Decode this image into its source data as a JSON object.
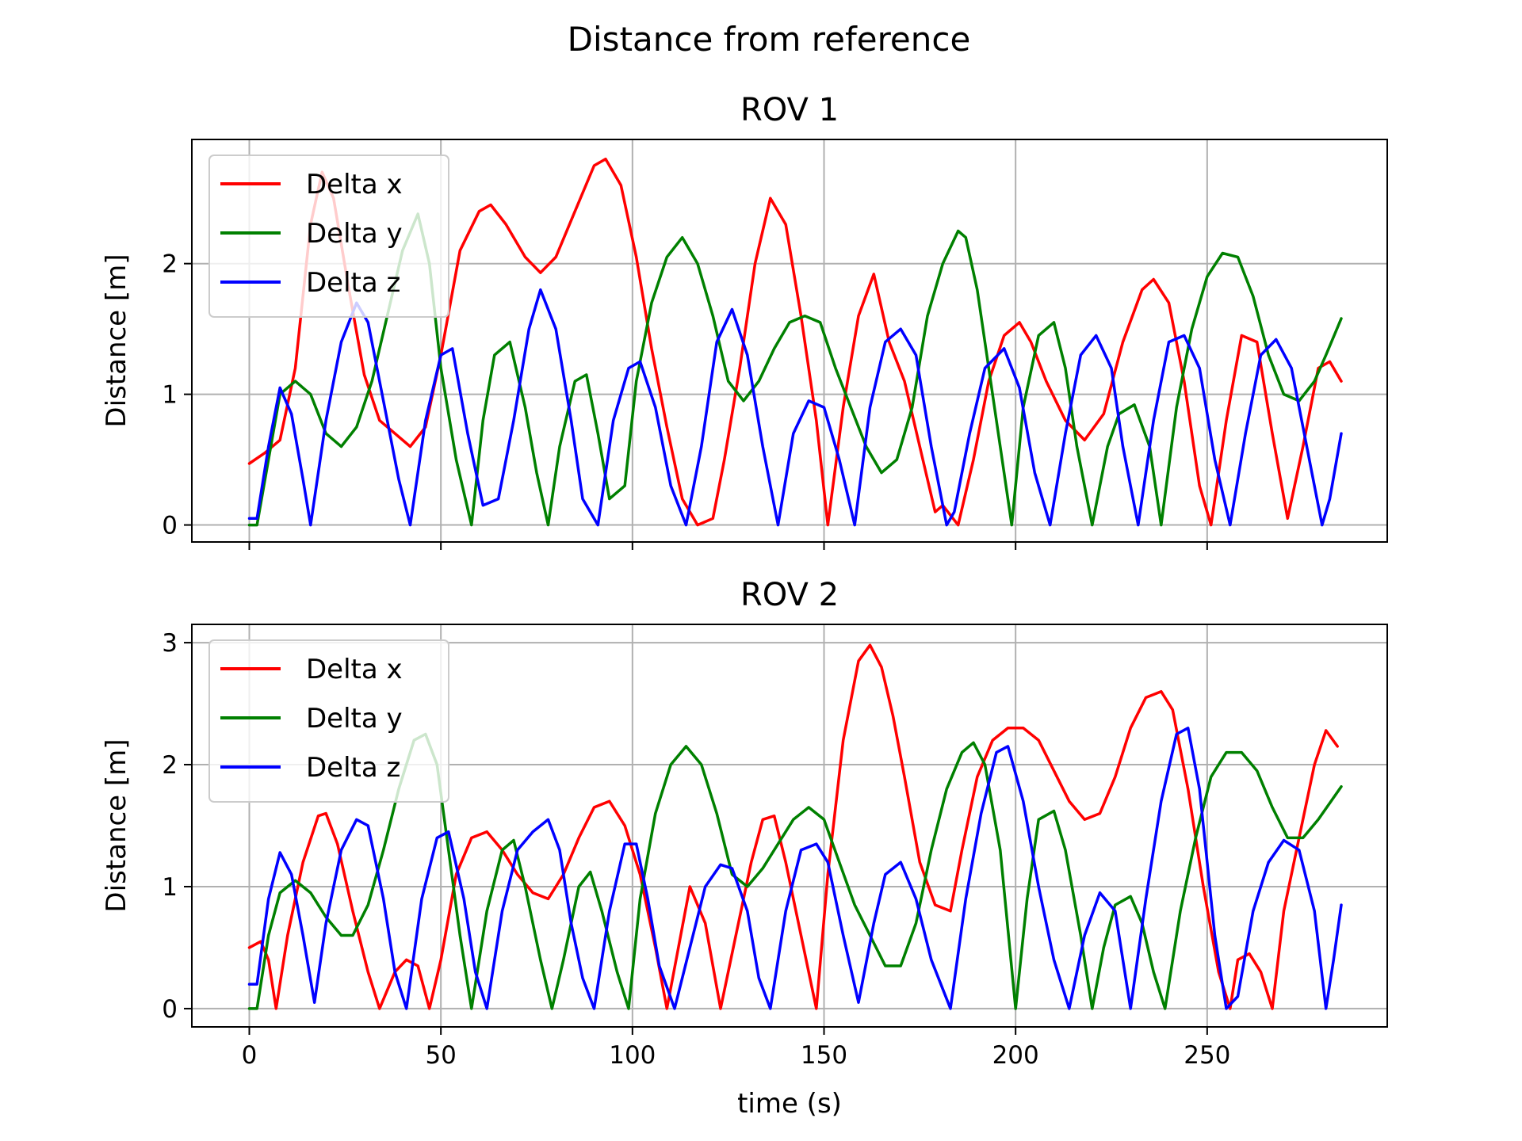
{
  "figure": {
    "suptitle": "Distance from reference",
    "colors": {
      "Delta x": "#ff0000",
      "Delta y": "#008000",
      "Delta z": "#0000ff"
    }
  },
  "chart_data": [
    {
      "type": "line",
      "title": "ROV 1",
      "xlabel": "",
      "ylabel": "Distance [m]",
      "xlim": [
        -15,
        297
      ],
      "ylim": [
        -0.13,
        2.95
      ],
      "xticks": [
        0,
        50,
        100,
        150,
        200,
        250
      ],
      "xtick_labels_visible": false,
      "yticks": [
        0,
        1,
        2
      ],
      "grid": true,
      "legend": "top-left",
      "series": [
        {
          "name": "Delta x",
          "color": "#ff0000",
          "x": [
            0,
            4,
            8,
            12,
            16,
            19,
            22,
            26,
            30,
            34,
            38,
            42,
            46,
            50,
            55,
            60,
            63,
            67,
            72,
            76,
            80,
            85,
            90,
            93,
            97,
            101,
            105,
            109,
            113,
            117,
            121,
            124,
            128,
            132,
            136,
            140,
            144,
            148,
            151,
            155,
            159,
            163,
            167,
            171,
            175,
            179,
            181,
            185,
            189,
            193,
            197,
            201,
            204,
            208,
            213,
            218,
            223,
            228,
            233,
            236,
            240,
            244,
            248,
            251,
            255,
            259,
            263,
            267,
            271,
            275,
            279,
            282,
            285
          ],
          "y": [
            0.47,
            0.55,
            0.65,
            1.2,
            2.3,
            2.7,
            2.5,
            1.8,
            1.15,
            0.8,
            0.7,
            0.6,
            0.75,
            1.3,
            2.1,
            2.4,
            2.45,
            2.3,
            2.05,
            1.93,
            2.05,
            2.4,
            2.75,
            2.8,
            2.6,
            2.05,
            1.35,
            0.75,
            0.2,
            0.0,
            0.05,
            0.5,
            1.2,
            2.0,
            2.5,
            2.3,
            1.6,
            0.8,
            0.0,
            0.9,
            1.6,
            1.92,
            1.4,
            1.1,
            0.6,
            0.1,
            0.15,
            0.0,
            0.5,
            1.1,
            1.45,
            1.55,
            1.4,
            1.1,
            0.8,
            0.65,
            0.85,
            1.4,
            1.8,
            1.88,
            1.7,
            1.1,
            0.3,
            0.0,
            0.8,
            1.45,
            1.4,
            0.7,
            0.05,
            0.6,
            1.2,
            1.25,
            1.1
          ]
        },
        {
          "name": "Delta y",
          "color": "#008000",
          "x": [
            0,
            2,
            5,
            8,
            12,
            16,
            20,
            24,
            28,
            32,
            36,
            40,
            44,
            47,
            50,
            54,
            58,
            61,
            64,
            68,
            72,
            75,
            78,
            81,
            85,
            88,
            91,
            94,
            98,
            101,
            105,
            109,
            113,
            117,
            121,
            125,
            129,
            133,
            137,
            141,
            145,
            149,
            153,
            157,
            161,
            165,
            169,
            173,
            177,
            181,
            185,
            187,
            190,
            193,
            196,
            199,
            202,
            206,
            210,
            213,
            216,
            220,
            224,
            227,
            231,
            235,
            238,
            242,
            246,
            250,
            254,
            258,
            262,
            266,
            270,
            274,
            278,
            281,
            285
          ],
          "y": [
            0.0,
            0.0,
            0.5,
            1.0,
            1.1,
            1.0,
            0.7,
            0.6,
            0.75,
            1.1,
            1.6,
            2.1,
            2.38,
            2.0,
            1.2,
            0.5,
            0.0,
            0.8,
            1.3,
            1.4,
            0.9,
            0.4,
            0.0,
            0.6,
            1.1,
            1.15,
            0.7,
            0.2,
            0.3,
            1.1,
            1.7,
            2.05,
            2.2,
            2.0,
            1.6,
            1.1,
            0.95,
            1.1,
            1.35,
            1.55,
            1.6,
            1.55,
            1.2,
            0.9,
            0.6,
            0.4,
            0.5,
            0.9,
            1.6,
            2.0,
            2.25,
            2.2,
            1.8,
            1.2,
            0.6,
            0.0,
            0.9,
            1.45,
            1.55,
            1.2,
            0.6,
            0.0,
            0.6,
            0.85,
            0.92,
            0.6,
            0.0,
            0.9,
            1.5,
            1.9,
            2.08,
            2.05,
            1.75,
            1.3,
            1.0,
            0.95,
            1.1,
            1.3,
            1.58
          ]
        },
        {
          "name": "Delta z",
          "color": "#0000ff",
          "x": [
            0,
            2,
            5,
            8,
            11,
            14,
            16,
            20,
            24,
            28,
            31,
            35,
            39,
            42,
            46,
            50,
            53,
            57,
            61,
            65,
            69,
            73,
            76,
            80,
            84,
            87,
            91,
            95,
            99,
            102,
            106,
            110,
            114,
            118,
            122,
            126,
            130,
            134,
            138,
            142,
            146,
            150,
            154,
            158,
            162,
            166,
            170,
            174,
            178,
            182,
            184,
            188,
            192,
            197,
            201,
            205,
            209,
            213,
            217,
            221,
            225,
            228,
            232,
            236,
            240,
            244,
            248,
            252,
            256,
            260,
            264,
            268,
            272,
            276,
            280,
            282,
            285
          ],
          "y": [
            0.05,
            0.05,
            0.6,
            1.05,
            0.85,
            0.35,
            0.0,
            0.8,
            1.4,
            1.7,
            1.55,
            0.95,
            0.35,
            0.0,
            0.8,
            1.3,
            1.35,
            0.7,
            0.15,
            0.2,
            0.8,
            1.5,
            1.8,
            1.5,
            0.8,
            0.2,
            0.0,
            0.8,
            1.2,
            1.25,
            0.9,
            0.3,
            0.0,
            0.6,
            1.4,
            1.65,
            1.3,
            0.6,
            0.0,
            0.7,
            0.95,
            0.9,
            0.5,
            0.0,
            0.9,
            1.4,
            1.5,
            1.3,
            0.6,
            0.0,
            0.1,
            0.7,
            1.2,
            1.35,
            1.05,
            0.4,
            0.0,
            0.7,
            1.3,
            1.45,
            1.2,
            0.6,
            0.0,
            0.8,
            1.4,
            1.45,
            1.2,
            0.5,
            0.0,
            0.7,
            1.3,
            1.42,
            1.2,
            0.6,
            0.0,
            0.2,
            0.7
          ]
        }
      ]
    },
    {
      "type": "line",
      "title": "ROV 2",
      "xlabel": "time (s)",
      "ylabel": "Distance [m]",
      "xlim": [
        -15,
        297
      ],
      "ylim": [
        -0.15,
        3.15
      ],
      "xticks": [
        0,
        50,
        100,
        150,
        200,
        250
      ],
      "xtick_labels_visible": true,
      "yticks": [
        0,
        1,
        2,
        3
      ],
      "grid": true,
      "legend": "top-left",
      "series": [
        {
          "name": "Delta x",
          "color": "#ff0000",
          "x": [
            0,
            3,
            5,
            7,
            10,
            14,
            18,
            20,
            23,
            27,
            31,
            34,
            38,
            41,
            44,
            47,
            50,
            54,
            58,
            62,
            66,
            70,
            74,
            78,
            82,
            86,
            90,
            94,
            98,
            102,
            106,
            109,
            112,
            115,
            119,
            123,
            127,
            131,
            134,
            137,
            140,
            144,
            148,
            151,
            155,
            159,
            162,
            165,
            168,
            171,
            175,
            179,
            183,
            186,
            190,
            194,
            198,
            202,
            206,
            210,
            214,
            218,
            222,
            226,
            230,
            234,
            238,
            241,
            245,
            249,
            253,
            256,
            258,
            261,
            264,
            267,
            270,
            274,
            278,
            281,
            284
          ],
          "y": [
            0.5,
            0.55,
            0.4,
            0.0,
            0.6,
            1.2,
            1.58,
            1.6,
            1.35,
            0.8,
            0.3,
            0.0,
            0.3,
            0.4,
            0.35,
            0.0,
            0.4,
            1.1,
            1.4,
            1.45,
            1.3,
            1.1,
            0.95,
            0.9,
            1.1,
            1.4,
            1.65,
            1.7,
            1.5,
            1.1,
            0.5,
            0.0,
            0.5,
            1.0,
            0.7,
            0.0,
            0.6,
            1.2,
            1.55,
            1.58,
            1.2,
            0.6,
            0.0,
            1.1,
            2.2,
            2.85,
            2.98,
            2.8,
            2.4,
            1.9,
            1.2,
            0.85,
            0.8,
            1.3,
            1.9,
            2.2,
            2.3,
            2.3,
            2.2,
            1.95,
            1.7,
            1.55,
            1.6,
            1.9,
            2.3,
            2.55,
            2.6,
            2.45,
            1.8,
            1.0,
            0.3,
            0.0,
            0.4,
            0.45,
            0.3,
            0.0,
            0.8,
            1.4,
            2.0,
            2.28,
            2.15
          ]
        },
        {
          "name": "Delta y",
          "color": "#008000",
          "x": [
            0,
            2,
            5,
            8,
            12,
            16,
            20,
            24,
            27,
            31,
            35,
            39,
            43,
            46,
            49,
            52,
            55,
            58,
            62,
            66,
            69,
            72,
            76,
            79,
            82,
            86,
            89,
            92,
            96,
            99,
            102,
            106,
            110,
            114,
            118,
            122,
            126,
            130,
            134,
            138,
            142,
            146,
            150,
            154,
            158,
            162,
            166,
            170,
            174,
            178,
            182,
            186,
            189,
            192,
            196,
            200,
            203,
            206,
            210,
            213,
            217,
            220,
            223,
            226,
            230,
            233,
            236,
            239,
            243,
            247,
            251,
            255,
            259,
            263,
            267,
            271,
            275,
            279,
            285
          ],
          "y": [
            0.0,
            0.0,
            0.6,
            0.95,
            1.05,
            0.95,
            0.75,
            0.6,
            0.6,
            0.85,
            1.3,
            1.8,
            2.2,
            2.25,
            2.0,
            1.3,
            0.6,
            0.0,
            0.8,
            1.3,
            1.38,
            1.0,
            0.4,
            0.0,
            0.4,
            1.0,
            1.12,
            0.8,
            0.3,
            0.0,
            0.9,
            1.6,
            2.0,
            2.15,
            2.0,
            1.6,
            1.1,
            1.0,
            1.15,
            1.35,
            1.55,
            1.65,
            1.55,
            1.2,
            0.85,
            0.6,
            0.35,
            0.35,
            0.7,
            1.3,
            1.8,
            2.1,
            2.18,
            2.0,
            1.3,
            0.0,
            0.9,
            1.55,
            1.62,
            1.3,
            0.6,
            0.0,
            0.5,
            0.85,
            0.92,
            0.7,
            0.3,
            0.0,
            0.8,
            1.4,
            1.9,
            2.1,
            2.1,
            1.95,
            1.65,
            1.4,
            1.4,
            1.55,
            1.82
          ]
        },
        {
          "name": "Delta z",
          "color": "#0000ff",
          "x": [
            0,
            2,
            5,
            8,
            11,
            14,
            17,
            20,
            24,
            28,
            31,
            35,
            38,
            41,
            45,
            49,
            52,
            56,
            59,
            62,
            66,
            70,
            74,
            78,
            81,
            84,
            87,
            90,
            94,
            98,
            101,
            104,
            107,
            111,
            115,
            119,
            123,
            126,
            130,
            133,
            136,
            140,
            144,
            148,
            151,
            155,
            159,
            163,
            166,
            170,
            174,
            178,
            183,
            187,
            191,
            195,
            198,
            202,
            206,
            210,
            214,
            218,
            222,
            226,
            230,
            234,
            238,
            242,
            245,
            248,
            252,
            255,
            258,
            262,
            266,
            270,
            274,
            278,
            281,
            283,
            285
          ],
          "y": [
            0.2,
            0.2,
            0.9,
            1.28,
            1.1,
            0.6,
            0.05,
            0.7,
            1.3,
            1.55,
            1.5,
            0.9,
            0.3,
            0.0,
            0.9,
            1.4,
            1.45,
            0.9,
            0.3,
            0.0,
            0.8,
            1.3,
            1.45,
            1.55,
            1.3,
            0.7,
            0.25,
            0.0,
            0.8,
            1.35,
            1.35,
            0.9,
            0.35,
            0.0,
            0.5,
            1.0,
            1.18,
            1.15,
            0.8,
            0.25,
            0.0,
            0.8,
            1.3,
            1.35,
            1.2,
            0.6,
            0.05,
            0.7,
            1.1,
            1.2,
            0.9,
            0.4,
            0.0,
            0.9,
            1.6,
            2.1,
            2.15,
            1.7,
            1.0,
            0.4,
            0.0,
            0.6,
            0.95,
            0.8,
            0.0,
            0.9,
            1.7,
            2.25,
            2.3,
            1.8,
            0.6,
            0.0,
            0.1,
            0.8,
            1.2,
            1.38,
            1.3,
            0.8,
            0.0,
            0.4,
            0.85
          ]
        }
      ]
    }
  ]
}
